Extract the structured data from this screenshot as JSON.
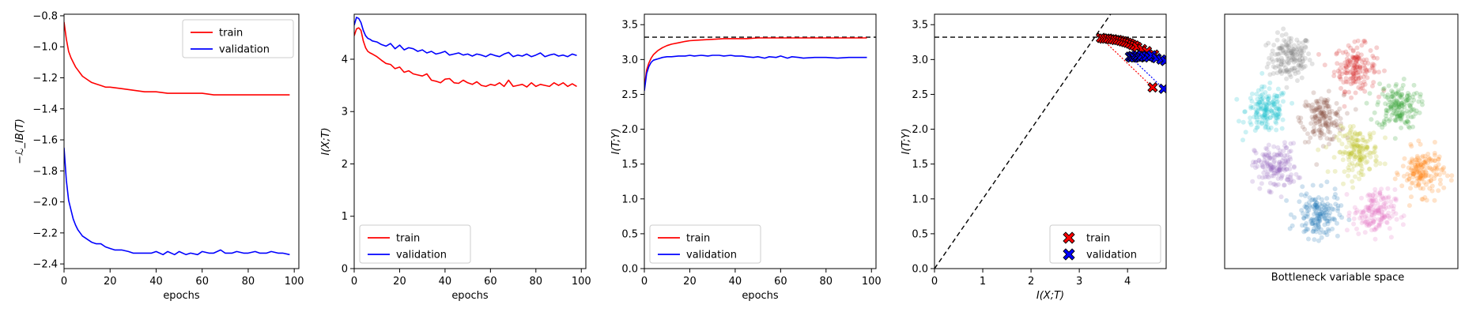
{
  "chart_data": [
    {
      "type": "line",
      "title": "",
      "xlabel": "epochs",
      "ylabel": "−ℒ_IB(T)",
      "xlim": [
        0,
        102
      ],
      "ylim": [
        -2.43,
        -0.79
      ],
      "xticks": [
        0,
        20,
        40,
        60,
        80,
        100
      ],
      "yticks": [
        -2.4,
        -2.2,
        -2.0,
        -1.8,
        -1.6,
        -1.4,
        -1.2,
        -1.0,
        -0.8
      ],
      "ytick_labels": [
        "−2.4",
        "−2.2",
        "−2.0",
        "−1.8",
        "−1.6",
        "−1.4",
        "−1.2",
        "−1.0",
        "−0.8"
      ],
      "legend": {
        "position": "upper-right"
      },
      "series": [
        {
          "name": "train",
          "color": "#ff0000",
          "x": [
            0,
            1,
            2,
            3,
            4,
            5,
            6,
            7,
            8,
            9,
            10,
            12,
            14,
            16,
            18,
            20,
            25,
            30,
            35,
            40,
            45,
            50,
            55,
            60,
            65,
            70,
            75,
            80,
            85,
            90,
            95,
            98
          ],
          "y": [
            -0.84,
            -0.95,
            -1.03,
            -1.07,
            -1.1,
            -1.13,
            -1.15,
            -1.17,
            -1.19,
            -1.2,
            -1.21,
            -1.23,
            -1.24,
            -1.25,
            -1.26,
            -1.26,
            -1.27,
            -1.28,
            -1.29,
            -1.29,
            -1.3,
            -1.3,
            -1.3,
            -1.3,
            -1.31,
            -1.31,
            -1.31,
            -1.31,
            -1.31,
            -1.31,
            -1.31,
            -1.31
          ]
        },
        {
          "name": "validation",
          "color": "#0000ff",
          "x": [
            0,
            1,
            2,
            3,
            4,
            5,
            6,
            7,
            8,
            9,
            10,
            12,
            14,
            16,
            18,
            20,
            22,
            25,
            28,
            30,
            33,
            35,
            38,
            40,
            43,
            45,
            48,
            50,
            53,
            55,
            58,
            60,
            63,
            65,
            68,
            70,
            73,
            75,
            78,
            80,
            83,
            85,
            88,
            90,
            93,
            95,
            98
          ],
          "y": [
            -1.65,
            -1.86,
            -1.99,
            -2.05,
            -2.11,
            -2.15,
            -2.18,
            -2.2,
            -2.22,
            -2.23,
            -2.24,
            -2.26,
            -2.27,
            -2.27,
            -2.29,
            -2.3,
            -2.31,
            -2.31,
            -2.32,
            -2.33,
            -2.33,
            -2.33,
            -2.33,
            -2.32,
            -2.34,
            -2.32,
            -2.34,
            -2.32,
            -2.34,
            -2.33,
            -2.34,
            -2.32,
            -2.33,
            -2.33,
            -2.31,
            -2.33,
            -2.33,
            -2.32,
            -2.33,
            -2.33,
            -2.32,
            -2.33,
            -2.33,
            -2.32,
            -2.33,
            -2.33,
            -2.34
          ]
        }
      ]
    },
    {
      "type": "line",
      "title": "",
      "xlabel": "epochs",
      "ylabel": "I(X;T)",
      "xlim": [
        0,
        102
      ],
      "ylim": [
        0,
        4.86
      ],
      "xticks": [
        0,
        20,
        40,
        60,
        80,
        100
      ],
      "yticks": [
        0,
        1,
        2,
        3,
        4
      ],
      "legend": {
        "position": "lower-left"
      },
      "series": [
        {
          "name": "train",
          "color": "#ff0000",
          "x": [
            0,
            1,
            2,
            3,
            4,
            5,
            6,
            7,
            8,
            10,
            12,
            14,
            16,
            18,
            20,
            22,
            24,
            26,
            28,
            30,
            32,
            34,
            36,
            38,
            40,
            42,
            44,
            46,
            48,
            50,
            52,
            54,
            56,
            58,
            60,
            62,
            64,
            66,
            68,
            70,
            72,
            74,
            76,
            78,
            80,
            82,
            84,
            86,
            88,
            90,
            92,
            94,
            96,
            98
          ],
          "y": [
            4.45,
            4.58,
            4.6,
            4.55,
            4.35,
            4.22,
            4.15,
            4.12,
            4.1,
            4.05,
            3.98,
            3.92,
            3.9,
            3.82,
            3.85,
            3.75,
            3.78,
            3.72,
            3.7,
            3.68,
            3.72,
            3.6,
            3.58,
            3.55,
            3.62,
            3.63,
            3.55,
            3.54,
            3.6,
            3.55,
            3.52,
            3.57,
            3.5,
            3.48,
            3.52,
            3.5,
            3.55,
            3.48,
            3.6,
            3.48,
            3.5,
            3.52,
            3.47,
            3.55,
            3.48,
            3.52,
            3.5,
            3.48,
            3.55,
            3.5,
            3.55,
            3.48,
            3.53,
            3.48
          ]
        },
        {
          "name": "validation",
          "color": "#0000ff",
          "x": [
            0,
            1,
            2,
            3,
            4,
            5,
            6,
            7,
            8,
            10,
            12,
            14,
            16,
            18,
            20,
            22,
            24,
            26,
            28,
            30,
            32,
            34,
            36,
            38,
            40,
            42,
            44,
            46,
            48,
            50,
            52,
            54,
            56,
            58,
            60,
            62,
            64,
            66,
            68,
            70,
            72,
            74,
            76,
            78,
            80,
            82,
            84,
            86,
            88,
            90,
            92,
            94,
            96,
            98
          ],
          "y": [
            4.65,
            4.8,
            4.78,
            4.7,
            4.55,
            4.45,
            4.4,
            4.38,
            4.35,
            4.33,
            4.28,
            4.25,
            4.3,
            4.2,
            4.27,
            4.18,
            4.22,
            4.2,
            4.15,
            4.18,
            4.12,
            4.15,
            4.1,
            4.12,
            4.15,
            4.08,
            4.1,
            4.12,
            4.08,
            4.1,
            4.06,
            4.1,
            4.08,
            4.05,
            4.1,
            4.07,
            4.05,
            4.1,
            4.13,
            4.05,
            4.08,
            4.06,
            4.1,
            4.05,
            4.08,
            4.12,
            4.05,
            4.08,
            4.1,
            4.06,
            4.08,
            4.05,
            4.1,
            4.07
          ]
        }
      ]
    },
    {
      "type": "line",
      "title": "",
      "xlabel": "epochs",
      "ylabel": "I(T;Y)",
      "xlim": [
        0,
        102
      ],
      "ylim": [
        0,
        3.65
      ],
      "xticks": [
        0,
        20,
        40,
        60,
        80,
        100
      ],
      "yticks": [
        0.0,
        0.5,
        1.0,
        1.5,
        2.0,
        2.5,
        3.0,
        3.5
      ],
      "ytick_labels": [
        "0.0",
        "0.5",
        "1.0",
        "1.5",
        "2.0",
        "2.5",
        "3.0",
        "3.5"
      ],
      "hline": {
        "y": 3.32,
        "style": "dashed",
        "color": "#000000"
      },
      "legend": {
        "position": "lower-left"
      },
      "series": [
        {
          "name": "train",
          "color": "#ff0000",
          "x": [
            0,
            1,
            2,
            3,
            4,
            5,
            6,
            8,
            10,
            12,
            15,
            18,
            20,
            25,
            30,
            35,
            40,
            45,
            50,
            60,
            70,
            80,
            90,
            98
          ],
          "y": [
            2.6,
            2.85,
            2.95,
            3.02,
            3.07,
            3.1,
            3.13,
            3.17,
            3.2,
            3.22,
            3.24,
            3.26,
            3.27,
            3.28,
            3.29,
            3.3,
            3.3,
            3.3,
            3.31,
            3.31,
            3.31,
            3.31,
            3.31,
            3.31
          ]
        },
        {
          "name": "validation",
          "color": "#0000ff",
          "x": [
            0,
            1,
            2,
            3,
            4,
            5,
            6,
            8,
            10,
            12,
            15,
            18,
            20,
            22,
            25,
            28,
            30,
            33,
            35,
            38,
            40,
            43,
            45,
            48,
            50,
            53,
            55,
            58,
            60,
            63,
            65,
            68,
            70,
            75,
            80,
            85,
            90,
            95,
            98
          ],
          "y": [
            2.55,
            2.8,
            2.9,
            2.96,
            2.99,
            3.0,
            3.01,
            3.03,
            3.04,
            3.04,
            3.05,
            3.05,
            3.06,
            3.05,
            3.06,
            3.05,
            3.06,
            3.06,
            3.05,
            3.06,
            3.05,
            3.05,
            3.04,
            3.03,
            3.04,
            3.02,
            3.04,
            3.03,
            3.05,
            3.02,
            3.04,
            3.03,
            3.02,
            3.03,
            3.03,
            3.02,
            3.03,
            3.03,
            3.03
          ]
        }
      ]
    },
    {
      "type": "scatter",
      "title": "",
      "xlabel": "I(X;T)",
      "ylabel": "I(T;Y)",
      "xlim": [
        0,
        4.8
      ],
      "ylim": [
        0,
        3.65
      ],
      "xticks": [
        0,
        1,
        2,
        3,
        4
      ],
      "yticks": [
        0.0,
        0.5,
        1.0,
        1.5,
        2.0,
        2.5,
        3.0,
        3.5
      ],
      "ytick_labels": [
        "0.0",
        "0.5",
        "1.0",
        "1.5",
        "2.0",
        "2.5",
        "3.0",
        "3.5"
      ],
      "hline": {
        "y": 3.32,
        "style": "dashed",
        "color": "#000000"
      },
      "diagonal": {
        "from": [
          0,
          0
        ],
        "to": [
          3.65,
          3.65
        ],
        "style": "dashed",
        "color": "#000000"
      },
      "legend": {
        "position": "lower-right"
      },
      "series": [
        {
          "name": "train",
          "color": "#ff0000",
          "marker": "X",
          "x": [
            4.52,
            3.45,
            3.5,
            3.55,
            3.6,
            3.65,
            3.7,
            3.75,
            3.8,
            3.85,
            3.9,
            3.95,
            4.0,
            4.05,
            4.1,
            4.15,
            4.2,
            4.3,
            4.4,
            4.55
          ],
          "y": [
            2.6,
            3.31,
            3.3,
            3.3,
            3.3,
            3.29,
            3.29,
            3.28,
            3.28,
            3.27,
            3.26,
            3.25,
            3.24,
            3.23,
            3.21,
            3.2,
            3.18,
            3.15,
            3.12,
            3.07
          ]
        },
        {
          "name": "validation",
          "color": "#0000ff",
          "marker": "X",
          "x": [
            4.75,
            4.05,
            4.08,
            4.1,
            4.12,
            4.15,
            4.18,
            4.2,
            4.22,
            4.25,
            4.28,
            4.3,
            4.35,
            4.4,
            4.45,
            4.5,
            4.6,
            4.7,
            4.78
          ],
          "y": [
            2.58,
            3.04,
            3.03,
            3.05,
            3.04,
            3.03,
            3.06,
            3.04,
            3.05,
            3.03,
            3.04,
            3.06,
            3.04,
            3.05,
            3.03,
            3.06,
            3.02,
            3.0,
            2.98
          ]
        }
      ]
    },
    {
      "type": "scatter",
      "title": "",
      "xlabel": "Bottleneck variable space",
      "ylabel": "",
      "clusters": [
        {
          "name": "gray",
          "color": "#7f7f7f",
          "center": [
            0.28,
            0.83
          ],
          "n": 160
        },
        {
          "name": "red",
          "color": "#d62728",
          "center": [
            0.56,
            0.79
          ],
          "n": 160
        },
        {
          "name": "cyan",
          "color": "#17becf",
          "center": [
            0.18,
            0.62
          ],
          "n": 160
        },
        {
          "name": "brown",
          "color": "#8c564b",
          "center": [
            0.42,
            0.59
          ],
          "n": 160
        },
        {
          "name": "green",
          "color": "#2ca02c",
          "center": [
            0.74,
            0.64
          ],
          "n": 160
        },
        {
          "name": "purple",
          "color": "#9467bd",
          "center": [
            0.22,
            0.4
          ],
          "n": 160
        },
        {
          "name": "olive",
          "color": "#bcbd22",
          "center": [
            0.57,
            0.46
          ],
          "n": 160
        },
        {
          "name": "orange",
          "color": "#ff7f0e",
          "center": [
            0.85,
            0.38
          ],
          "n": 160
        },
        {
          "name": "blue",
          "color": "#1f77b4",
          "center": [
            0.4,
            0.21
          ],
          "n": 160
        },
        {
          "name": "pink",
          "color": "#e377c2",
          "center": [
            0.64,
            0.22
          ],
          "n": 160
        }
      ]
    }
  ]
}
